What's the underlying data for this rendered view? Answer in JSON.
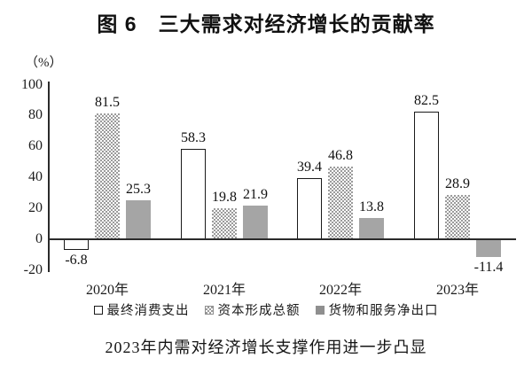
{
  "title": "图 6　三大需求对经济增长的贡献率",
  "y_axis_unit": "（%）",
  "caption": "2023年内需对经济增长支撑作用进一步凸显",
  "chart_data": {
    "type": "bar",
    "categories": [
      "2020年",
      "2021年",
      "2022年",
      "2023年"
    ],
    "series": [
      {
        "name": "最终消费支出",
        "style": "outline",
        "values": [
          -6.8,
          58.3,
          39.4,
          82.5
        ]
      },
      {
        "name": "资本形成总额",
        "style": "dotted",
        "values": [
          81.5,
          19.8,
          46.8,
          28.9
        ]
      },
      {
        "name": "货物和服务净出口",
        "style": "solid",
        "values": [
          25.3,
          21.9,
          13.8,
          -11.4
        ]
      }
    ],
    "value_labels": true,
    "ylim": [
      -20,
      100
    ],
    "yticks": [
      100,
      80,
      60,
      40,
      20,
      0,
      -20
    ],
    "grid": false,
    "legend_position": "bottom",
    "colors": {
      "solid_bar": "#a5a5a5",
      "dot_pattern": "#9b9b9b",
      "outline": "#1a1a1a",
      "axis": "#2b2b2b"
    }
  }
}
